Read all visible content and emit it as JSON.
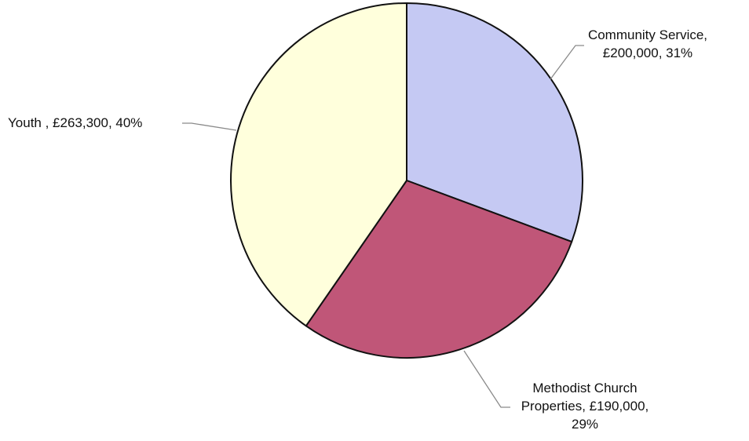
{
  "chart_data": {
    "type": "pie",
    "title": "",
    "slices": [
      {
        "name": "Community Service",
        "value": 200000,
        "percent": 31,
        "color": "#c5c9f3",
        "label_lines": [
          "Community Service,",
          "£200,000, 31%"
        ]
      },
      {
        "name": "Methodist Church Properties",
        "value": 190000,
        "percent": 29,
        "color": "#c05678",
        "label_lines": [
          "Methodist Church",
          "Properties, £190,000,",
          "29%"
        ]
      },
      {
        "name": "Youth",
        "value": 263300,
        "percent": 40,
        "color": "#ffffdc",
        "label_lines": [
          "Youth , £263,300, 40%"
        ]
      }
    ],
    "start_angle": "12 o'clock",
    "direction": "clockwise",
    "legend": "none",
    "outline_color": "#111111",
    "leader_line_color": "#8a8a8a"
  }
}
